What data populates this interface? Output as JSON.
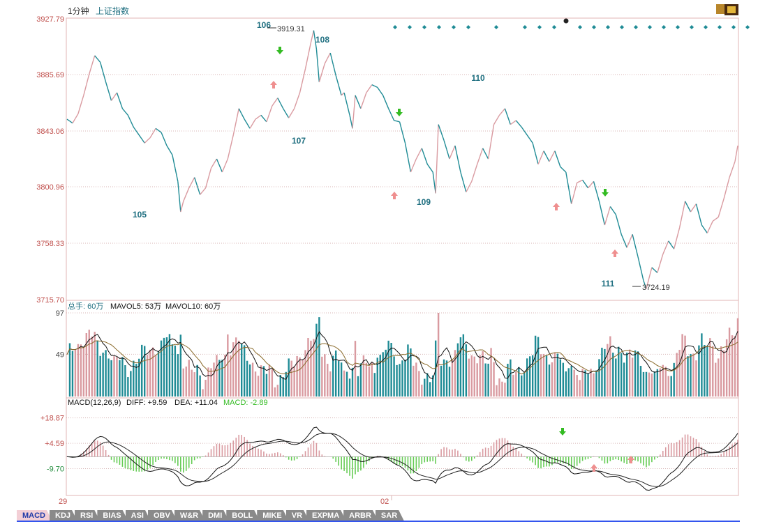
{
  "header": {
    "period": "1分钟",
    "index_name": "上证指数"
  },
  "chart_data": {
    "type": "line",
    "price_panel": {
      "y_ticks": [
        "3927.79",
        "3885.69",
        "3843.06",
        "3800.96",
        "3758.33",
        "3715.70"
      ],
      "ylim": [
        3715.7,
        3927.79
      ],
      "high_label": "3919.31",
      "low_label": "3724.19",
      "wave_labels": [
        "105",
        "106",
        "107",
        "108",
        "109",
        "110",
        "111"
      ],
      "price": [
        [
          0,
          3852
        ],
        [
          2,
          3849
        ],
        [
          4,
          3856
        ],
        [
          6,
          3870
        ],
        [
          8,
          3886
        ],
        [
          10,
          3900
        ],
        [
          12,
          3895
        ],
        [
          14,
          3880
        ],
        [
          16,
          3866
        ],
        [
          18,
          3872
        ],
        [
          20,
          3860
        ],
        [
          22,
          3855
        ],
        [
          24,
          3846
        ],
        [
          26,
          3840
        ],
        [
          28,
          3834
        ],
        [
          30,
          3838
        ],
        [
          32,
          3845
        ],
        [
          34,
          3842
        ],
        [
          36,
          3832
        ],
        [
          38,
          3825
        ],
        [
          40,
          3805
        ],
        [
          41,
          3782
        ],
        [
          42,
          3790
        ],
        [
          44,
          3800
        ],
        [
          46,
          3808
        ],
        [
          48,
          3795
        ],
        [
          50,
          3800
        ],
        [
          52,
          3815
        ],
        [
          54,
          3822
        ],
        [
          56,
          3812
        ],
        [
          58,
          3822
        ],
        [
          60,
          3840
        ],
        [
          62,
          3860
        ],
        [
          64,
          3852
        ],
        [
          66,
          3845
        ],
        [
          68,
          3852
        ],
        [
          70,
          3855
        ],
        [
          72,
          3850
        ],
        [
          74,
          3862
        ],
        [
          76,
          3868
        ],
        [
          78,
          3860
        ],
        [
          80,
          3853
        ],
        [
          82,
          3860
        ],
        [
          84,
          3872
        ],
        [
          86,
          3890
        ],
        [
          88,
          3910
        ],
        [
          89,
          3919
        ],
        [
          90,
          3905
        ],
        [
          91,
          3880
        ],
        [
          93,
          3894
        ],
        [
          95,
          3902
        ],
        [
          97,
          3885
        ],
        [
          99,
          3870
        ],
        [
          100,
          3872
        ],
        [
          102,
          3855
        ],
        [
          103,
          3845
        ],
        [
          104,
          3870
        ],
        [
          106,
          3860
        ],
        [
          108,
          3872
        ],
        [
          110,
          3878
        ],
        [
          112,
          3876
        ],
        [
          114,
          3870
        ],
        [
          116,
          3860
        ],
        [
          118,
          3851
        ],
        [
          120,
          3850
        ],
        [
          122,
          3834
        ],
        [
          124,
          3812
        ],
        [
          126,
          3822
        ],
        [
          128,
          3830
        ],
        [
          130,
          3818
        ],
        [
          132,
          3812
        ],
        [
          133,
          3796
        ],
        [
          134,
          3848
        ],
        [
          136,
          3836
        ],
        [
          138,
          3822
        ],
        [
          140,
          3832
        ],
        [
          142,
          3812
        ],
        [
          144,
          3797
        ],
        [
          146,
          3805
        ],
        [
          148,
          3818
        ],
        [
          150,
          3830
        ],
        [
          152,
          3822
        ],
        [
          154,
          3848
        ],
        [
          156,
          3855
        ],
        [
          158,
          3860
        ],
        [
          160,
          3848
        ],
        [
          162,
          3851
        ],
        [
          164,
          3846
        ],
        [
          166,
          3840
        ],
        [
          168,
          3834
        ],
        [
          170,
          3818
        ],
        [
          172,
          3828
        ],
        [
          174,
          3820
        ],
        [
          176,
          3828
        ],
        [
          178,
          3816
        ],
        [
          180,
          3812
        ],
        [
          182,
          3788
        ],
        [
          184,
          3804
        ],
        [
          186,
          3806
        ],
        [
          188,
          3800
        ],
        [
          190,
          3805
        ],
        [
          192,
          3790
        ],
        [
          194,
          3772
        ],
        [
          196,
          3786
        ],
        [
          198,
          3780
        ],
        [
          200,
          3765
        ],
        [
          202,
          3755
        ],
        [
          204,
          3765
        ],
        [
          206,
          3748
        ],
        [
          208,
          3730
        ],
        [
          209,
          3724
        ],
        [
          211,
          3740
        ],
        [
          213,
          3736
        ],
        [
          215,
          3750
        ],
        [
          217,
          3760
        ],
        [
          219,
          3754
        ],
        [
          221,
          3770
        ],
        [
          223,
          3790
        ],
        [
          225,
          3782
        ],
        [
          227,
          3788
        ],
        [
          229,
          3772
        ],
        [
          231,
          3766
        ],
        [
          233,
          3775
        ],
        [
          235,
          3778
        ],
        [
          237,
          3792
        ],
        [
          239,
          3808
        ],
        [
          241,
          3820
        ],
        [
          242,
          3832
        ]
      ]
    },
    "volume_panel": {
      "legend": {
        "total": "总手: 60万",
        "mavol5": "MAVOL5: 53万",
        "mavol10": "MAVOL10: 60万"
      },
      "y_ticks": [
        "97",
        "49"
      ],
      "ymax": 97
    },
    "macd_panel": {
      "legend": {
        "name": "MACD(12,26,9)",
        "diff": "DIFF: +9.59",
        "dea": "DEA: +11.04",
        "macd": "MACD: -2.89"
      },
      "y_ticks": [
        "+18.87",
        "+4.59",
        "-9.70"
      ],
      "ylim": [
        -24,
        25
      ]
    },
    "x_labels": [
      "29",
      "02"
    ]
  },
  "colors": {
    "up": "#d99aa0",
    "down": "#1f8b95",
    "axis_label": "#c0504d",
    "grid": "#d8b6b6",
    "wave_label": "#1f6f80",
    "arrow_up": "#ef8f8f",
    "arrow_down": "#33bb22"
  },
  "tabs": [
    "MACD",
    "KDJ",
    "RSI",
    "BIAS",
    "ASI",
    "OBV",
    "W&R",
    "DMI",
    "BOLL",
    "MIKE",
    "VR",
    "EXPMA",
    "ARBR",
    "SAR"
  ]
}
